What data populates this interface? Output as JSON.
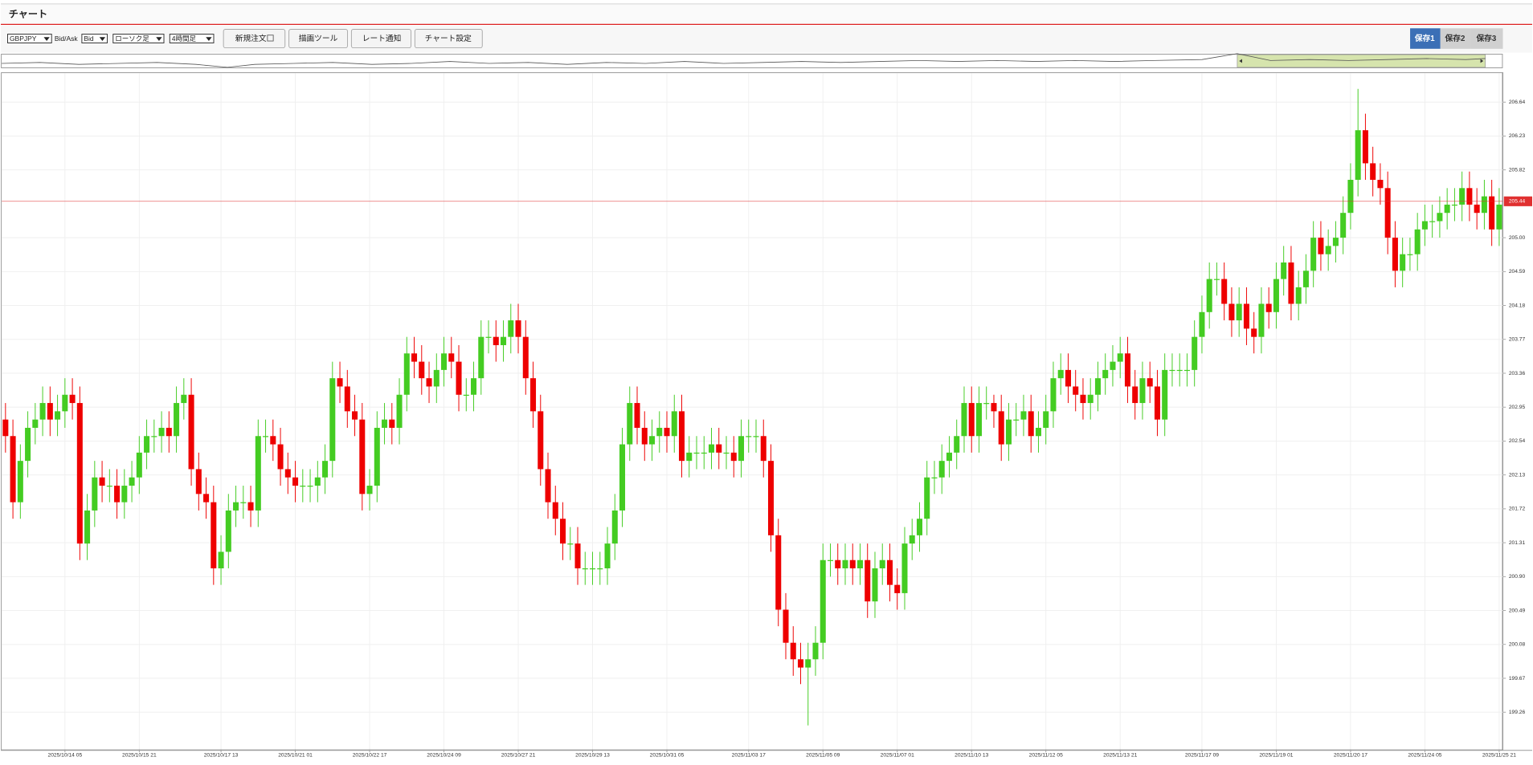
{
  "header": {
    "title": "チャート"
  },
  "toolbar": {
    "symbol": "GBPJPY",
    "side_label": "Bid/Ask",
    "side": "Bid",
    "chart_style": "ローソク足",
    "timeframe": "4時間足",
    "buttons": [
      "新規注文",
      "描画ツール",
      "レート通知",
      "チャート設定"
    ],
    "tabs": [
      "保存1",
      "保存2",
      "保存3"
    ]
  },
  "chart_data": {
    "type": "candlestick",
    "categories": [
      null,
      null,
      null,
      null,
      null,
      null,
      null,
      null,
      "2025/10/14 05",
      null,
      null,
      null,
      null,
      null,
      null,
      null,
      null,
      null,
      "2025/10/15 21",
      null,
      null,
      null,
      null,
      null,
      null,
      null,
      null,
      null,
      null,
      "2025/10/17 13",
      null,
      null,
      null,
      null,
      null,
      null,
      null,
      null,
      null,
      "2025/10/21 01",
      null,
      null,
      null,
      null,
      null,
      null,
      null,
      null,
      null,
      "2025/10/22 17",
      null,
      null,
      null,
      null,
      null,
      null,
      null,
      null,
      null,
      "2025/10/24 09",
      null,
      null,
      null,
      null,
      null,
      null,
      null,
      null,
      null,
      "2025/10/27 21",
      null,
      null,
      null,
      null,
      null,
      null,
      null,
      null,
      null,
      "2025/10/29 13",
      null,
      null,
      null,
      null,
      null,
      null,
      null,
      null,
      null,
      "2025/10/31 05",
      null,
      null,
      null,
      null,
      null,
      null,
      null,
      null,
      null,
      null,
      "2025/11/03 17",
      null,
      null,
      null,
      null,
      null,
      null,
      null,
      null,
      null,
      "2025/11/05 09",
      null,
      null,
      null,
      null,
      null,
      null,
      null,
      null,
      null,
      "2025/11/07 01",
      null,
      null,
      null,
      null,
      null,
      null,
      null,
      null,
      null,
      "2025/11/10 13",
      null,
      null,
      null,
      null,
      null,
      null,
      null,
      null,
      null,
      "2025/11/12 05",
      null,
      null,
      null,
      null,
      null,
      null,
      null,
      null,
      null,
      "2025/11/13 21",
      null,
      null,
      null,
      null,
      null,
      null,
      null,
      null,
      null,
      null,
      "2025/11/17 09",
      null,
      null,
      null,
      null,
      null,
      null,
      null,
      null,
      null,
      "2025/11/19 01",
      null,
      null,
      null,
      null,
      null,
      null,
      null,
      null,
      null,
      "2025/11/20 17",
      null,
      null,
      null,
      null,
      null,
      null,
      null,
      null,
      null,
      "2025/11/24 05",
      null,
      null,
      null,
      null,
      null,
      null,
      null,
      null,
      null,
      "2025/11/25 21"
    ],
    "open": [
      202.8,
      202.6,
      201.8,
      202.3,
      202.7,
      202.8,
      203.0,
      202.8,
      202.9,
      203.1,
      203.0,
      201.3,
      201.7,
      202.1,
      202.0,
      202.0,
      201.8,
      202.0,
      202.1,
      202.4,
      202.6,
      202.6,
      202.7,
      202.6,
      203.0,
      203.1,
      202.2,
      201.9,
      201.8,
      201.0,
      201.2,
      201.7,
      201.8,
      201.8,
      201.7,
      202.6,
      202.6,
      202.5,
      202.2,
      202.1,
      202.0,
      202.0,
      202.0,
      202.1,
      202.3,
      203.3,
      203.2,
      202.9,
      202.8,
      201.9,
      202.0,
      202.7,
      202.8,
      202.7,
      203.1,
      203.6,
      203.5,
      203.3,
      203.2,
      203.4,
      203.6,
      203.5,
      203.1,
      203.1,
      203.3,
      203.8,
      203.8,
      203.7,
      203.8,
      204.0,
      203.8,
      203.3,
      202.9,
      202.2,
      201.8,
      201.6,
      201.3,
      201.3,
      201.0,
      201.0,
      201.0,
      201.0,
      201.3,
      201.7,
      202.5,
      203.0,
      202.7,
      202.5,
      202.6,
      202.7,
      202.6,
      202.9,
      202.3,
      202.4,
      202.4,
      202.4,
      202.5,
      202.4,
      202.4,
      202.3,
      202.6,
      202.6,
      202.6,
      202.3,
      201.4,
      200.5,
      200.1,
      199.9,
      199.8,
      199.9,
      200.1,
      201.1,
      201.1,
      201.0,
      201.1,
      201.0,
      201.1,
      200.6,
      201.0,
      201.1,
      200.8,
      200.7,
      201.3,
      201.4,
      201.6,
      202.1,
      202.1,
      202.3,
      202.4,
      202.6,
      203.0,
      202.6,
      203.0,
      203.0,
      202.9,
      202.5,
      202.8,
      202.8,
      202.9,
      202.6,
      202.7,
      202.9,
      203.3,
      203.4,
      203.2,
      203.1,
      203.0,
      203.1,
      203.3,
      203.4,
      203.5,
      203.6,
      203.2,
      203.0,
      203.3,
      203.2,
      202.8,
      203.4,
      203.4,
      203.4,
      203.4,
      203.8,
      204.1,
      204.5,
      204.5,
      204.2,
      204.0,
      204.2,
      203.9,
      203.8,
      204.2,
      204.1,
      204.5,
      204.7,
      204.2,
      204.4,
      204.6,
      205.0,
      204.8,
      204.9,
      205.0,
      205.3,
      205.7,
      206.3,
      205.9,
      205.7,
      205.6,
      205.0,
      204.6,
      204.8,
      204.8,
      205.1,
      205.2,
      205.2,
      205.3,
      205.4,
      205.4,
      205.6,
      205.4,
      205.3,
      205.5,
      205.1
    ],
    "high": [
      203.0,
      202.8,
      202.5,
      202.9,
      203.0,
      203.2,
      203.2,
      203.1,
      203.3,
      203.3,
      203.2,
      201.9,
      202.3,
      202.3,
      202.2,
      202.2,
      202.2,
      202.3,
      202.6,
      202.8,
      202.8,
      202.9,
      202.9,
      203.2,
      203.3,
      203.3,
      202.4,
      202.1,
      202.0,
      201.4,
      201.9,
      202.0,
      202.0,
      202.0,
      202.8,
      202.8,
      202.8,
      202.7,
      202.4,
      202.3,
      202.2,
      202.2,
      202.3,
      202.5,
      203.5,
      203.5,
      203.4,
      203.1,
      203.0,
      202.2,
      202.9,
      203.0,
      203.0,
      203.3,
      203.8,
      203.8,
      203.7,
      203.5,
      203.6,
      203.8,
      203.8,
      203.7,
      203.3,
      203.5,
      204.0,
      204.0,
      204.0,
      204.0,
      204.2,
      204.2,
      204.0,
      203.5,
      203.1,
      202.4,
      202.0,
      201.8,
      201.5,
      201.5,
      201.2,
      201.2,
      201.2,
      201.5,
      201.9,
      202.7,
      203.2,
      203.2,
      202.9,
      202.8,
      202.9,
      202.9,
      203.1,
      203.1,
      202.6,
      202.6,
      202.6,
      202.7,
      202.7,
      202.6,
      202.6,
      202.8,
      202.8,
      202.8,
      202.8,
      202.5,
      201.6,
      200.7,
      200.3,
      200.1,
      200.1,
      200.3,
      201.3,
      201.3,
      201.3,
      201.3,
      201.3,
      201.3,
      201.3,
      201.2,
      201.3,
      201.3,
      201.0,
      201.5,
      201.6,
      201.8,
      202.3,
      202.3,
      202.5,
      202.6,
      202.8,
      203.2,
      203.2,
      203.2,
      203.2,
      203.1,
      203.1,
      203.0,
      203.0,
      203.1,
      203.1,
      202.9,
      203.1,
      203.5,
      203.6,
      203.6,
      203.4,
      203.3,
      203.3,
      203.5,
      203.6,
      203.7,
      203.8,
      203.8,
      203.4,
      203.5,
      203.5,
      203.4,
      203.6,
      203.6,
      203.6,
      203.6,
      204.0,
      204.3,
      204.7,
      204.7,
      204.7,
      204.4,
      204.4,
      204.4,
      204.1,
      204.4,
      204.4,
      204.7,
      204.9,
      204.9,
      204.6,
      204.8,
      205.2,
      205.2,
      205.1,
      205.2,
      205.5,
      205.9,
      206.8,
      206.5,
      206.1,
      205.9,
      205.8,
      205.2,
      205.0,
      205.0,
      205.3,
      205.4,
      205.4,
      205.5,
      205.6,
      205.6,
      205.8,
      205.8,
      205.6,
      205.7,
      205.7,
      205.6
    ],
    "low": [
      202.4,
      201.6,
      201.6,
      202.1,
      202.5,
      202.6,
      202.6,
      202.6,
      202.7,
      202.8,
      201.1,
      201.1,
      201.5,
      201.8,
      201.8,
      201.6,
      201.6,
      201.8,
      201.9,
      202.2,
      202.4,
      202.4,
      202.4,
      202.4,
      202.8,
      202.0,
      201.7,
      201.6,
      200.8,
      200.8,
      201.0,
      201.5,
      201.6,
      201.5,
      201.5,
      202.4,
      202.3,
      202.0,
      201.9,
      201.8,
      201.8,
      201.8,
      201.8,
      201.9,
      202.1,
      203.0,
      202.7,
      202.6,
      201.7,
      201.7,
      201.8,
      202.5,
      202.5,
      202.5,
      202.9,
      203.3,
      203.1,
      203.0,
      203.0,
      203.2,
      203.3,
      202.9,
      202.9,
      202.9,
      203.1,
      203.6,
      203.5,
      203.5,
      203.6,
      203.6,
      203.1,
      202.7,
      202.0,
      201.6,
      201.4,
      201.1,
      201.1,
      200.8,
      200.8,
      200.8,
      200.8,
      200.8,
      201.1,
      201.5,
      202.3,
      202.5,
      202.3,
      202.3,
      202.4,
      202.4,
      202.4,
      202.1,
      202.1,
      202.2,
      202.2,
      202.2,
      202.2,
      202.2,
      202.1,
      202.1,
      202.4,
      202.4,
      202.1,
      201.2,
      200.3,
      199.9,
      199.7,
      199.6,
      199.1,
      199.7,
      199.9,
      200.9,
      200.8,
      200.8,
      200.8,
      200.8,
      200.4,
      200.4,
      200.8,
      200.6,
      200.5,
      200.5,
      201.1,
      201.2,
      201.4,
      201.9,
      201.9,
      202.1,
      202.2,
      202.4,
      202.4,
      202.4,
      202.8,
      202.7,
      202.3,
      202.3,
      202.6,
      202.6,
      202.4,
      202.4,
      202.5,
      202.7,
      203.1,
      203.0,
      202.9,
      202.8,
      202.8,
      202.9,
      203.1,
      203.2,
      203.3,
      203.0,
      202.8,
      202.8,
      203.0,
      202.6,
      202.6,
      203.2,
      203.2,
      203.2,
      203.2,
      203.6,
      203.9,
      204.3,
      204.0,
      203.8,
      203.8,
      203.7,
      203.6,
      203.6,
      203.9,
      203.9,
      204.3,
      204.0,
      204.0,
      204.2,
      204.4,
      204.6,
      204.6,
      204.7,
      204.8,
      205.1,
      205.5,
      205.7,
      205.5,
      205.4,
      204.8,
      204.4,
      204.4,
      204.6,
      204.6,
      204.9,
      205.0,
      205.0,
      205.1,
      205.2,
      205.2,
      205.2,
      205.1,
      205.1,
      204.9,
      204.9
    ],
    "close": [
      202.6,
      201.8,
      202.3,
      202.7,
      202.8,
      203.0,
      202.8,
      202.9,
      203.1,
      203.0,
      201.3,
      201.7,
      202.1,
      202.0,
      202.0,
      201.8,
      202.0,
      202.1,
      202.4,
      202.6,
      202.6,
      202.7,
      202.6,
      203.0,
      203.1,
      202.2,
      201.9,
      201.8,
      201.0,
      201.2,
      201.7,
      201.8,
      201.8,
      201.7,
      202.6,
      202.6,
      202.5,
      202.2,
      202.1,
      202.0,
      202.0,
      202.0,
      202.1,
      202.3,
      203.3,
      203.2,
      202.9,
      202.8,
      201.9,
      202.0,
      202.7,
      202.8,
      202.7,
      203.1,
      203.6,
      203.5,
      203.3,
      203.2,
      203.4,
      203.6,
      203.5,
      203.1,
      203.1,
      203.3,
      203.8,
      203.8,
      203.7,
      203.8,
      204.0,
      203.8,
      203.3,
      202.9,
      202.2,
      201.8,
      201.6,
      201.3,
      201.3,
      201.0,
      201.0,
      201.0,
      201.0,
      201.3,
      201.7,
      202.5,
      203.0,
      202.7,
      202.5,
      202.6,
      202.7,
      202.6,
      202.9,
      202.3,
      202.4,
      202.4,
      202.4,
      202.5,
      202.4,
      202.4,
      202.3,
      202.6,
      202.6,
      202.6,
      202.3,
      201.4,
      200.5,
      200.1,
      199.9,
      199.8,
      199.9,
      200.1,
      201.1,
      201.1,
      201.0,
      201.1,
      201.0,
      201.1,
      200.6,
      201.0,
      201.1,
      200.8,
      200.7,
      201.3,
      201.4,
      201.6,
      202.1,
      202.1,
      202.3,
      202.4,
      202.6,
      203.0,
      202.6,
      203.0,
      203.0,
      202.9,
      202.5,
      202.8,
      202.8,
      202.9,
      202.6,
      202.7,
      202.9,
      203.3,
      203.4,
      203.2,
      203.1,
      203.0,
      203.1,
      203.3,
      203.4,
      203.5,
      203.6,
      203.2,
      203.0,
      203.3,
      203.2,
      202.8,
      203.4,
      203.4,
      203.4,
      203.4,
      203.8,
      204.1,
      204.5,
      204.5,
      204.2,
      204.0,
      204.2,
      203.9,
      203.8,
      204.2,
      204.1,
      204.5,
      204.7,
      204.2,
      204.4,
      204.6,
      205.0,
      204.8,
      204.9,
      205.0,
      205.3,
      205.7,
      206.3,
      205.9,
      205.7,
      205.6,
      205.0,
      204.6,
      204.8,
      204.8,
      205.1,
      205.2,
      205.2,
      205.3,
      205.4,
      205.4,
      205.6,
      205.4,
      205.3,
      205.5,
      205.1,
      205.4
    ],
    "up_color": "#44cc22",
    "down_color": "#ee0000",
    "ylim": [
      198.81,
      206.99
    ],
    "yticks": [
      199.26,
      199.67,
      200.08,
      200.49,
      {
        "value": 200.9,
        "label": "200.90"
      },
      201.31,
      201.72,
      202.13,
      202.54,
      202.95,
      203.36,
      203.77,
      204.18,
      204.59,
      {
        "value": 205,
        "label": "205.00"
      },
      205.82,
      206.23,
      206.64
    ],
    "grid": true,
    "current_price": 205.44,
    "current_price_color": "#e03030"
  }
}
